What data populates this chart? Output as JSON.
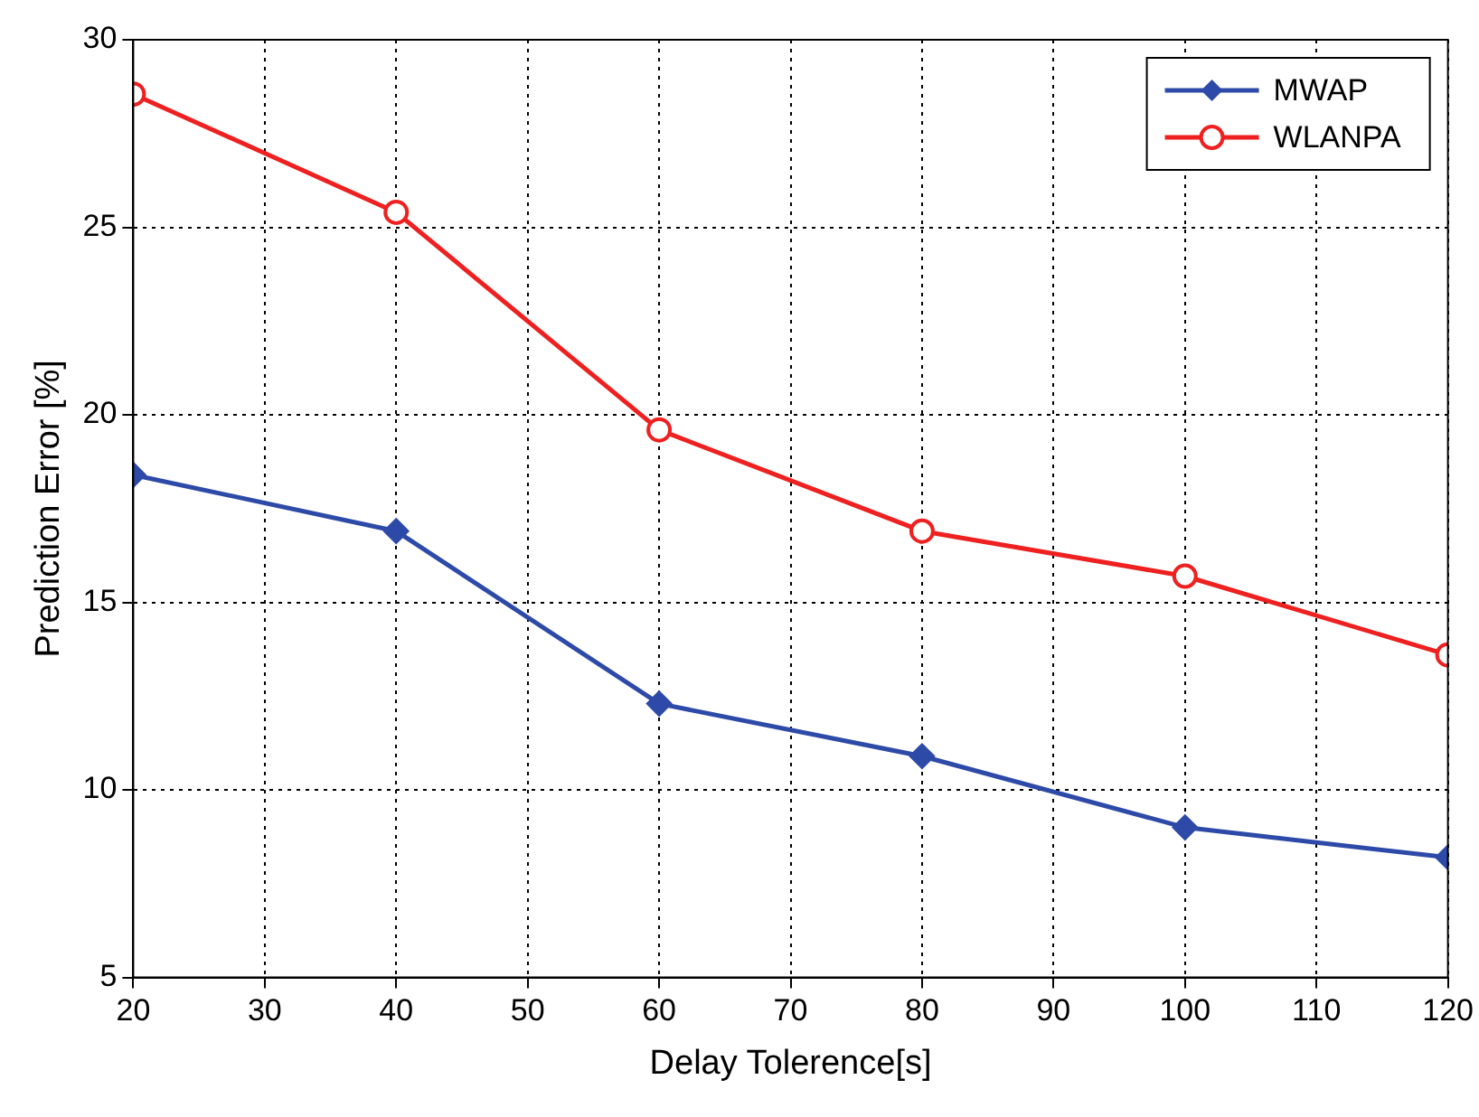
{
  "chart_data": {
    "type": "line",
    "xlabel": "Delay Tolerence[s]",
    "ylabel": "Prediction Error [%]",
    "x": [
      20,
      40,
      60,
      80,
      100,
      120
    ],
    "series": [
      {
        "name": "MWAP",
        "color": "#2e4aa8",
        "marker": "diamond",
        "values": [
          18.4,
          16.9,
          12.3,
          10.9,
          9.0,
          8.2
        ]
      },
      {
        "name": "WLANPA",
        "color": "#ee2020",
        "marker": "circle",
        "values": [
          28.55,
          25.4,
          19.6,
          16.9,
          15.7,
          13.6
        ]
      }
    ],
    "xlim": [
      20,
      120
    ],
    "xticks": [
      20,
      30,
      40,
      50,
      60,
      70,
      80,
      90,
      100,
      110,
      120
    ],
    "ylim": [
      5,
      30
    ],
    "yticks": [
      5,
      10,
      15,
      20,
      25,
      30
    ],
    "grid": true,
    "legend": "top right",
    "line_style": "solid"
  }
}
